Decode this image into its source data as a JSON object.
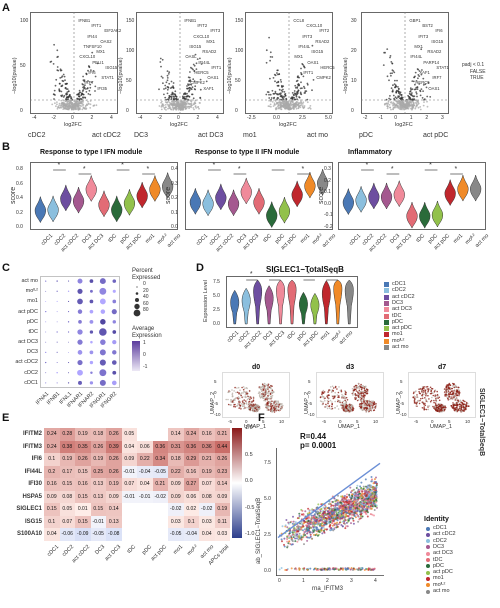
{
  "panels": {
    "A": "A",
    "B": "B",
    "C": "C",
    "D": "D",
    "E": "E",
    "F": "F"
  },
  "volcano": {
    "ylabel": "−log10(pvalue)",
    "xlabel": "log2FC",
    "plots": [
      {
        "left": "cDC2",
        "right": "act cDC2",
        "ticks_x": [
          "-4",
          "-2",
          "0",
          "2",
          "4"
        ],
        "ticks_y": [
          "0",
          "50",
          "100"
        ],
        "genes": [
          "IFNB1",
          "IFIT1",
          "EIF2AK2",
          "IFI44",
          "OAS2",
          "TNFSF10",
          "MX1",
          "CXCL10",
          "PELI1",
          "ISG15",
          "IFI6",
          "STAT1",
          "IRF7",
          "IFI35"
        ]
      },
      {
        "left": "DC3",
        "right": "act DC3",
        "ticks_x": [
          "-4",
          "-2",
          "0",
          "2",
          "4"
        ],
        "ticks_y": [
          "0",
          "50",
          "100",
          "150"
        ],
        "genes": [
          "IFNB1",
          "IFIT2",
          "IFIT3",
          "CXCL10",
          "MX1",
          "ISG15",
          "RSAD2",
          "OASL",
          "IFI44L",
          "IFIT1",
          "HERC5",
          "OAS1",
          "CMPK2",
          "XAF1"
        ]
      },
      {
        "left": "mo1",
        "right": "act mo",
        "ticks_x": [
          "-2.5",
          "0.0",
          "2.5",
          "5.0"
        ],
        "ticks_y": [
          "0",
          "50",
          "100",
          "150"
        ],
        "genes": [
          "CCL8",
          "CXCL10",
          "IFIT2",
          "IFIT3",
          "RSAD2",
          "IFI44L",
          "ISG15",
          "MX1",
          "OAS1",
          "HERC5",
          "IFIT1",
          "CMPK2"
        ]
      },
      {
        "left": "pDC",
        "right": "act pDC",
        "ticks_x": [
          "-2",
          "-1",
          "0",
          "1",
          "2",
          "3"
        ],
        "ticks_y": [
          "0",
          "10",
          "20",
          "30"
        ],
        "genes": [
          "GBP1",
          "BST2",
          "IFI6",
          "IFIT3",
          "ISG15",
          "MX1",
          "RSAD2",
          "IFI44L",
          "PARP14",
          "STAT1",
          "XAF1",
          "IRF7",
          "HERC5",
          "OAS1"
        ]
      }
    ],
    "legend": {
      "title": "padj < 0.1",
      "false_label": "FALSE",
      "true_label": "TRUE"
    }
  },
  "modules": {
    "ylabel": "score",
    "categories": [
      "cDC1",
      "cDC2",
      "act cDC2",
      "DC3",
      "act DC3",
      "tDC",
      "pDC",
      "act pDC",
      "mo1",
      "mo^IL2",
      "act mo"
    ],
    "colors": [
      "#4a78b5",
      "#8bbfde",
      "#6d4ea0",
      "#a4588f",
      "#f08a9a",
      "#e26b75",
      "#2a6b3a",
      "#92c14b",
      "#c0272d",
      "#f08a28",
      "#888888"
    ],
    "plots": [
      {
        "title": "Response to type I IFN module",
        "ticks_y": [
          "0.0",
          "0.2",
          "0.4",
          "0.6",
          "0.8"
        ],
        "medians": [
          0.23,
          0.24,
          0.39,
          0.36,
          0.52,
          0.31,
          0.24,
          0.33,
          0.43,
          0.52,
          0.56
        ]
      },
      {
        "title": "Response to type II IFN module",
        "ticks_y": [
          "0.0",
          "0.1",
          "0.2",
          "0.3",
          "0.4"
        ],
        "medians": [
          0.17,
          0.16,
          0.2,
          0.16,
          0.24,
          0.17,
          0.08,
          0.11,
          0.22,
          0.28,
          0.3
        ],
        "ns_label": "ns"
      },
      {
        "title": "Inflammatory",
        "ticks_y": [
          "-0.2",
          "-0.1",
          "0.0",
          "0.1",
          "0.2",
          "0.3"
        ],
        "medians": [
          0.0,
          0.02,
          0.05,
          0.05,
          0.07,
          -0.12,
          -0.12,
          -0.11,
          0.08,
          0.12,
          0.12
        ]
      }
    ],
    "star": "*"
  },
  "dotplot": {
    "rows": [
      "act mo",
      "mo^IL2",
      "mo1",
      "act pDC",
      "pDC",
      "tDC",
      "act DC3",
      "DC3",
      "act cDC2",
      "cDC2",
      "cDC1"
    ],
    "cols": [
      "IFNA1",
      "IFNB1",
      "IFNL1",
      "IFNAR1",
      "IFNAR2",
      "IFNGR1",
      "IFNGR2"
    ],
    "percent_title": "Percent Expressed",
    "percent_values": [
      "0",
      "20",
      "40",
      "60",
      "80"
    ],
    "avg_title": "Average Expression",
    "avg_values": [
      "1",
      "0",
      "-1"
    ]
  },
  "siglec": {
    "title": "SIGLEC1−TotalSeqB",
    "ylabel": "Expression Level",
    "ticks_y": [
      "0.0",
      "2.5",
      "5.0",
      "7.5"
    ],
    "medians": [
      4.6,
      5.0,
      7.0,
      5.5,
      7.2,
      7.4,
      4.2,
      4.0,
      6.5,
      7.6,
      7.2
    ],
    "legend": [
      "cDC1",
      "cDC2",
      "act cDC2",
      "DC3",
      "act DC3",
      "tDC",
      "pDC",
      "act pDC",
      "mo1",
      "mo^IL2",
      "act mo"
    ],
    "side_label": "SIGLEC1−TotalSeqB"
  },
  "umaps": {
    "xlabel": "UMAP_1",
    "ylabel": "UMAP_2",
    "panels": [
      {
        "title": "d0",
        "ticks_x": [
          "-5",
          "0",
          "5",
          "10"
        ],
        "ticks_y": [
          "-10",
          "-5",
          "0",
          "5"
        ]
      },
      {
        "title": "d3",
        "ticks_x": [
          "-5",
          "0",
          "5",
          "10"
        ],
        "ticks_y": [
          "-10",
          "-5",
          "0",
          "5"
        ]
      },
      {
        "title": "d7",
        "ticks_x": [
          "-5",
          "0",
          "5",
          "10"
        ],
        "ticks_y": [
          "-10",
          "-5",
          "0",
          "5"
        ]
      }
    ]
  },
  "heatmap": {
    "rows": [
      "IFITM2",
      "IFITM3",
      "IFI6",
      "IFI44L",
      "IFI30",
      "HSPA5",
      "SIGLEC1",
      "ISG15",
      "S100A10"
    ],
    "cols": [
      "cDC1",
      "cDC2",
      "act cDC2",
      "DC3",
      "act DC3",
      "tDC",
      "pDC",
      "act pDC",
      "mo1",
      "mo^IL2",
      "act mo",
      "APCs total"
    ],
    "values": [
      [
        "0.24",
        "0.28",
        "0.19",
        "0.18",
        "0.26",
        "0.05",
        "",
        "",
        "0.14",
        "0.24",
        "0.16",
        "0.21"
      ],
      [
        "0.24",
        "0.38",
        "0.35",
        "0.26",
        "0.39",
        "0.04",
        "0.06",
        "0.36",
        "0.31",
        "0.36",
        "0.36",
        "0.44"
      ],
      [
        "0.1",
        "0.19",
        "0.26",
        "0.19",
        "0.26",
        "0.09",
        "0.22",
        "0.34",
        "0.18",
        "0.29",
        "0.21",
        "0.26"
      ],
      [
        "0.2",
        "0.17",
        "0.15",
        "0.25",
        "0.26",
        "-0.01",
        "-0.04",
        "-0.05",
        "0.22",
        "0.16",
        "0.19",
        "0.23"
      ],
      [
        "0.16",
        "0.15",
        "0.16",
        "0.13",
        "0.19",
        "0.07",
        "0.04",
        "0.21",
        "0.09",
        "0.27",
        "0.07",
        "0.14"
      ],
      [
        "0.09",
        "0.08",
        "0.15",
        "0.13",
        "0.09",
        "-0.01",
        "-0.01",
        "-0.02",
        "0.09",
        "0.06",
        "0.08",
        "0.09"
      ],
      [
        "0.15",
        "0.05",
        "0.01",
        "0.15",
        "0.14",
        "",
        "",
        "",
        "-0.02",
        "0.02",
        "-0.02",
        "0.19"
      ],
      [
        "0.1",
        "0.07",
        "0.15",
        "-0.01",
        "0.13",
        "",
        "",
        "",
        "0.03",
        "0.1",
        "0.03",
        "0.11"
      ],
      [
        "0.04",
        "-0.06",
        "-0.09",
        "-0.05",
        "-0.08",
        "",
        "",
        "",
        "-0.05",
        "-0.04",
        "0.04",
        "0.03"
      ]
    ],
    "scale": [
      "1.0",
      "0.5",
      "0.0",
      "-0.5",
      "-1.0"
    ]
  },
  "scatter": {
    "stats_r": "R=0.44",
    "stats_p": "p= 0.0001",
    "xlabel": "rna_IFITM3",
    "ylabel": "ab_SIGLEC1−TotalSeqB",
    "ticks_x": [
      "0",
      "1",
      "2",
      "3",
      "4"
    ],
    "ticks_y": [
      "0.0",
      "2.5",
      "5.0",
      "7.5"
    ],
    "legend_title": "Identity",
    "legend": [
      "cDC1",
      "act cDC2",
      "cDC2",
      "DC3",
      "act DC3",
      "tDC",
      "pDC",
      "act pDC",
      "mo1",
      "mo^IL2",
      "act mo"
    ]
  },
  "colors": {
    "up": "#c0392b",
    "down": "#3b6bb5",
    "gray": "#9a9a9a",
    "heat_hi": "#8b1a1a",
    "heat_lo": "#2c3e8c"
  }
}
